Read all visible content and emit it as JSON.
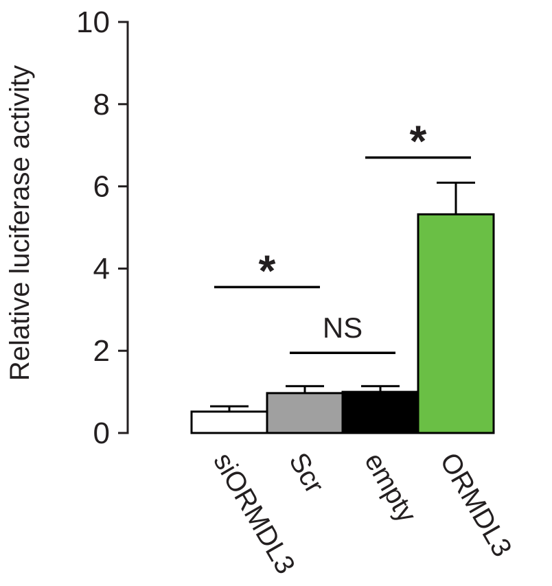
{
  "chart_data": {
    "type": "bar",
    "ylabel": "Relative luciferase activity",
    "xlabel": "",
    "ylim": [
      0,
      10
    ],
    "yticks": [
      "0",
      "2",
      "4",
      "6",
      "8",
      "10"
    ],
    "categories": [
      "siORMDL3",
      "Scr",
      "empty",
      "ORMDL3"
    ],
    "values": [
      0.52,
      0.97,
      1.0,
      5.32
    ],
    "errors": [
      0.13,
      0.17,
      0.14,
      0.77
    ],
    "colors": [
      "#ffffff",
      "#a0a0a0",
      "#000000",
      "#6abf45"
    ],
    "comparisons": [
      {
        "label": "*",
        "from": "siORMDL3",
        "to": "Scr",
        "y": 3.55
      },
      {
        "label": "NS",
        "from": "Scr",
        "to": "empty",
        "y": 1.95
      },
      {
        "label": "*",
        "from": "empty",
        "to": "ORMDL3",
        "y": 6.7
      }
    ]
  }
}
